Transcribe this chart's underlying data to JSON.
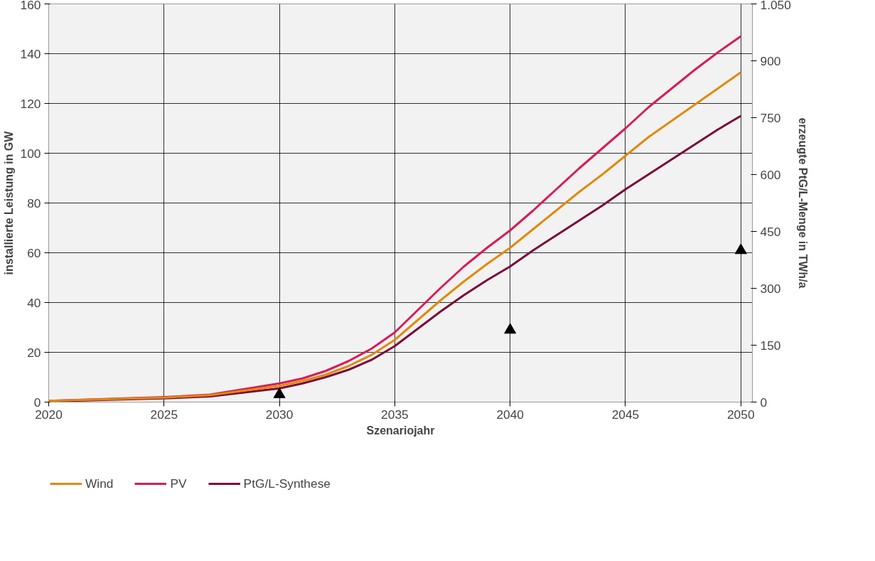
{
  "chart_data": {
    "type": "line",
    "xlabel": "Szenariojahr",
    "ylabel": "installierte Leistung in GW",
    "y2label": "erzeugte PtG/L-Menge in TWh/a",
    "x": [
      2020,
      2025,
      2027,
      2030,
      2031,
      2032,
      2033,
      2034,
      2035,
      2036,
      2037,
      2038,
      2039,
      2040,
      2041,
      2042,
      2043,
      2044,
      2045,
      2046,
      2047,
      2048,
      2049,
      2050
    ],
    "series": [
      {
        "name": "Wind",
        "color": "#e08a0b",
        "values": [
          0.5,
          1.8,
          2.8,
          6.5,
          8.5,
          11,
          14.5,
          19,
          25,
          33,
          41,
          48.5,
          55.5,
          62,
          69.5,
          77,
          84.5,
          91.5,
          99,
          106.5,
          113,
          119.5,
          126,
          132.5
        ]
      },
      {
        "name": "PV",
        "color": "#d81b5a",
        "values": [
          0.5,
          2,
          3,
          7.5,
          9.5,
          12.5,
          16.5,
          21.5,
          28,
          37,
          46,
          54.5,
          62,
          69,
          77,
          85.5,
          94,
          102,
          110,
          118.5,
          126,
          133.5,
          140.5,
          147
        ]
      },
      {
        "name": "PtG/L-Synthese",
        "color": "#7b0a3a",
        "values": [
          0.3,
          1.5,
          2.3,
          5.5,
          7.5,
          10,
          13,
          17,
          22.5,
          29.5,
          36.5,
          43,
          49,
          54.5,
          61,
          67,
          73,
          79,
          85.5,
          91.5,
          97.5,
          103.5,
          109.5,
          115
        ]
      },
      {
        "type": "scatter",
        "marker": "triangle",
        "axis": "y2",
        "color": "#000000",
        "x": [
          2030,
          2040,
          2050
        ],
        "values": [
          20,
          190,
          400
        ]
      }
    ],
    "xlim": [
      2020,
      2050.5
    ],
    "xticks": [
      2020,
      2025,
      2030,
      2035,
      2040,
      2045,
      2050
    ],
    "ylim": [
      0,
      160
    ],
    "yticks": [
      0,
      20,
      40,
      60,
      80,
      100,
      120,
      140,
      160
    ],
    "y2lim": [
      0,
      1050
    ],
    "y2ticks": [
      0,
      150,
      300,
      450,
      600,
      750,
      900,
      {
        "value": 1050,
        "label": "1.050"
      }
    ],
    "grid": true,
    "legend": "bottom left",
    "marker": "none",
    "line_style": "solid"
  }
}
